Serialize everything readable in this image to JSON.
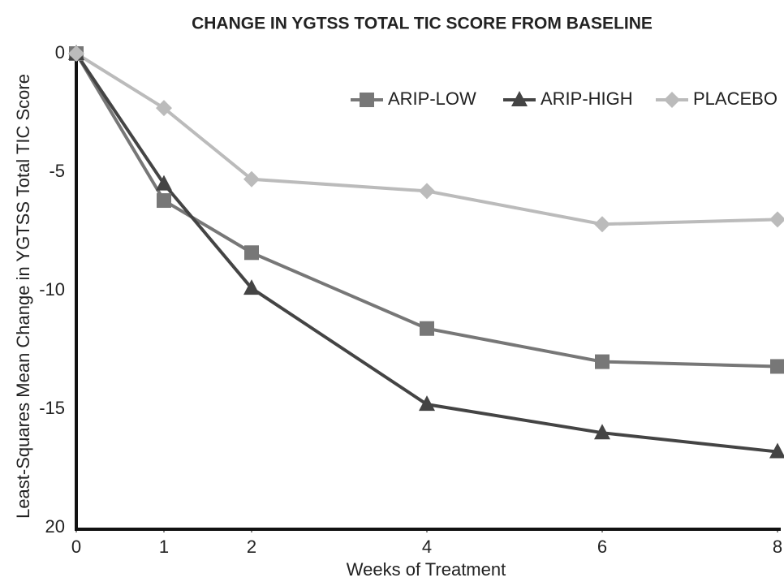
{
  "chart_data": {
    "type": "line",
    "title": "CHANGE IN YGTSS TOTAL TIC SCORE FROM BASELINE",
    "x_label": "Weeks of Treatment",
    "y_label": "Least-Squares Mean Change in YGTSS Total TIC Score",
    "x": [
      0,
      1,
      2,
      4,
      6,
      8
    ],
    "series": [
      {
        "name": "ARIP-LOW",
        "color": "#777777",
        "marker": "square",
        "values": [
          0,
          -6.2,
          -8.4,
          -11.6,
          -13.0,
          -13.2
        ]
      },
      {
        "name": "ARIP-HIGH",
        "color": "#444444",
        "marker": "triangle",
        "values": [
          0,
          -5.5,
          -9.9,
          -14.8,
          -16.0,
          -16.8
        ]
      },
      {
        "name": "PLACEBO",
        "color": "#bbbbbb",
        "marker": "diamond",
        "values": [
          0,
          -2.3,
          -5.3,
          -5.8,
          -7.2,
          -7.0
        ]
      }
    ],
    "xlim": [
      0,
      8
    ],
    "xticks": [
      0,
      1,
      2,
      4,
      6,
      8
    ],
    "ylim": [
      -20,
      0
    ],
    "yticks": [
      0,
      -5,
      -10,
      -15,
      {
        "value": -20,
        "label": "20"
      }
    ],
    "grid": false,
    "legend": "top-right"
  }
}
